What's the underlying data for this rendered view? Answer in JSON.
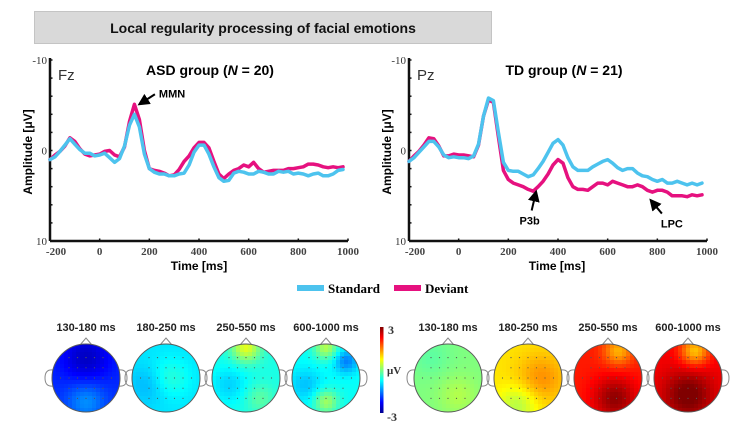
{
  "title": "Local regularity processing of facial emotions",
  "legend": {
    "items": [
      {
        "name": "Standard",
        "color": "#4dc3ee"
      },
      {
        "name": "Deviant",
        "color": "#e6117f"
      }
    ]
  },
  "chart_data": [
    {
      "type": "line",
      "panel": "left",
      "title_prefix": "ASD group (",
      "title_n": "N",
      "title_suffix": " = 20)",
      "electrode": "Fz",
      "xlabel": "Time [ms]",
      "ylabel": "Amplitude [μV]",
      "xlim": [
        -200,
        1000
      ],
      "ylim": [
        -10,
        10
      ],
      "y_inverted": true,
      "xticks": [
        -200,
        0,
        200,
        400,
        600,
        800,
        1000
      ],
      "yticks_labeled": [
        -10,
        0,
        10
      ],
      "annotations": [
        {
          "text": "MMN",
          "x": 150,
          "y": -5.0
        }
      ],
      "series": [
        {
          "name": "Standard",
          "color": "#4dc3ee",
          "x": [
            -200,
            -180,
            -160,
            -140,
            -120,
            -100,
            -80,
            -60,
            -40,
            -20,
            0,
            20,
            40,
            60,
            80,
            100,
            120,
            140,
            160,
            180,
            200,
            220,
            240,
            260,
            280,
            300,
            320,
            340,
            360,
            380,
            400,
            420,
            440,
            460,
            480,
            500,
            520,
            540,
            560,
            580,
            600,
            620,
            640,
            660,
            680,
            700,
            720,
            740,
            760,
            780,
            800,
            820,
            840,
            860,
            880,
            900,
            920,
            940,
            960,
            980
          ],
          "y": [
            1.0,
            0.7,
            0.1,
            -0.6,
            -1.3,
            -0.7,
            -0.1,
            0.3,
            0.3,
            0.6,
            0.5,
            0.3,
            0.8,
            1.3,
            0.9,
            -0.5,
            -2.8,
            -4.0,
            -2.6,
            0.4,
            2.0,
            2.4,
            2.6,
            2.6,
            2.8,
            2.8,
            2.6,
            2.5,
            1.6,
            0.2,
            -0.6,
            -0.6,
            0.4,
            1.8,
            3.0,
            3.4,
            3.3,
            2.5,
            2.3,
            2.4,
            2.6,
            2.6,
            2.3,
            2.4,
            2.6,
            2.6,
            2.3,
            2.4,
            2.3,
            2.6,
            2.5,
            2.6,
            2.8,
            2.6,
            2.5,
            2.8,
            2.8,
            2.6,
            2.2,
            2.1
          ]
        },
        {
          "name": "Deviant",
          "color": "#e6117f",
          "x": [
            -200,
            -180,
            -160,
            -140,
            -120,
            -100,
            -80,
            -60,
            -40,
            -20,
            0,
            20,
            40,
            60,
            80,
            100,
            120,
            140,
            160,
            180,
            200,
            220,
            240,
            260,
            280,
            300,
            320,
            340,
            360,
            380,
            400,
            420,
            440,
            460,
            480,
            500,
            520,
            540,
            560,
            580,
            600,
            620,
            640,
            660,
            680,
            700,
            720,
            740,
            760,
            780,
            800,
            820,
            840,
            860,
            880,
            900,
            920,
            940,
            960,
            980
          ],
          "y": [
            1.0,
            0.5,
            0.1,
            -0.5,
            -1.4,
            -1.0,
            -0.2,
            0.4,
            0.6,
            0.5,
            0.4,
            0.1,
            0.0,
            0.5,
            0.7,
            -0.4,
            -3.2,
            -5.1,
            -3.4,
            0.0,
            2.0,
            2.2,
            2.3,
            2.5,
            2.8,
            2.7,
            2.1,
            1.2,
            0.6,
            -0.3,
            -0.9,
            -0.9,
            -0.3,
            1.2,
            2.6,
            3.1,
            2.6,
            2.2,
            2.0,
            1.6,
            1.8,
            1.3,
            2.0,
            2.4,
            2.3,
            2.2,
            2.2,
            2.2,
            2.0,
            2.0,
            1.9,
            1.8,
            1.5,
            1.5,
            1.6,
            1.8,
            1.9,
            1.8,
            1.9,
            1.8
          ]
        }
      ]
    },
    {
      "type": "line",
      "panel": "right",
      "title_prefix": "TD group (",
      "title_n": "N",
      "title_suffix": " = 21)",
      "electrode": "Pz",
      "xlabel": "Time [ms]",
      "ylabel": "Amplitude [μV]",
      "xlim": [
        -200,
        1000
      ],
      "ylim": [
        -10,
        10
      ],
      "y_inverted": true,
      "xticks": [
        -200,
        0,
        200,
        400,
        600,
        800,
        1000
      ],
      "yticks_labeled": [
        -10,
        0,
        10
      ],
      "annotations": [
        {
          "text": "P3b",
          "x": 310,
          "y": 4.2
        },
        {
          "text": "LPC",
          "x": 770,
          "y": 5.2
        }
      ],
      "series": [
        {
          "name": "Standard",
          "color": "#4dc3ee",
          "x": [
            -200,
            -180,
            -160,
            -140,
            -120,
            -100,
            -80,
            -60,
            -40,
            -20,
            0,
            20,
            40,
            60,
            80,
            100,
            120,
            140,
            160,
            180,
            200,
            220,
            240,
            260,
            280,
            300,
            320,
            340,
            360,
            380,
            400,
            420,
            440,
            460,
            480,
            500,
            520,
            540,
            560,
            580,
            600,
            620,
            640,
            660,
            680,
            700,
            720,
            740,
            760,
            780,
            800,
            820,
            840,
            860,
            880,
            900,
            920,
            940,
            960,
            980
          ],
          "y": [
            1.2,
            0.8,
            0.2,
            -0.4,
            -1.0,
            -1.0,
            -0.4,
            0.5,
            0.8,
            0.7,
            0.8,
            0.8,
            0.9,
            0.6,
            -0.7,
            -3.8,
            -5.8,
            -5.5,
            -2.0,
            1.3,
            2.2,
            2.3,
            2.3,
            2.6,
            2.9,
            2.7,
            2.0,
            1.2,
            0.2,
            -0.8,
            -1.2,
            -0.6,
            0.8,
            1.8,
            2.2,
            2.2,
            2.2,
            1.8,
            1.5,
            1.2,
            1.0,
            1.4,
            1.9,
            2.2,
            2.0,
            2.0,
            2.5,
            2.8,
            2.9,
            3.2,
            3.4,
            3.2,
            3.6,
            3.6,
            3.4,
            3.6,
            3.8,
            3.6,
            3.8,
            3.6
          ]
        },
        {
          "name": "Deviant",
          "color": "#e6117f",
          "x": [
            -200,
            -180,
            -160,
            -140,
            -120,
            -100,
            -80,
            -60,
            -40,
            -20,
            0,
            20,
            40,
            60,
            80,
            100,
            120,
            140,
            160,
            180,
            200,
            220,
            240,
            260,
            280,
            300,
            320,
            340,
            360,
            380,
            400,
            420,
            440,
            460,
            480,
            500,
            520,
            540,
            560,
            580,
            600,
            620,
            640,
            660,
            680,
            700,
            720,
            740,
            760,
            780,
            800,
            820,
            840,
            860,
            880,
            900,
            920,
            940,
            960,
            980
          ],
          "y": [
            1.2,
            0.6,
            0.1,
            -0.6,
            -1.4,
            -1.3,
            -0.5,
            0.6,
            0.6,
            0.4,
            0.5,
            0.5,
            0.6,
            0.7,
            -0.6,
            -3.8,
            -5.6,
            -5.3,
            -1.5,
            2.2,
            3.2,
            3.6,
            3.8,
            4.0,
            4.3,
            4.5,
            4.0,
            3.4,
            2.6,
            1.6,
            1.0,
            1.4,
            3.0,
            4.0,
            4.3,
            4.3,
            4.4,
            4.0,
            3.6,
            3.6,
            3.8,
            3.4,
            3.6,
            3.8,
            4.0,
            4.0,
            3.8,
            4.0,
            4.4,
            4.6,
            4.4,
            4.4,
            4.6,
            5.0,
            5.0,
            5.0,
            5.1,
            4.9,
            5.0,
            4.9
          ]
        }
      ]
    }
  ],
  "topo": {
    "colorbar": {
      "max_label": "3",
      "min_label": "-3",
      "unit": "μV",
      "range": [
        -3,
        3
      ]
    },
    "groups": [
      {
        "group": "ASD",
        "maps": [
          {
            "label": "130-180 ms",
            "mean_uV": -2.0
          },
          {
            "label": "180-250 ms",
            "mean_uV": -0.9
          },
          {
            "label": "250-550 ms",
            "mean_uV": -0.6
          },
          {
            "label": "600-1000 ms",
            "mean_uV": -0.7
          }
        ]
      },
      {
        "group": "TD",
        "maps": [
          {
            "label": "130-180 ms",
            "mean_uV": 0.0
          },
          {
            "label": "180-250 ms",
            "mean_uV": 0.9
          },
          {
            "label": "250-550 ms",
            "mean_uV": 2.1
          },
          {
            "label": "600-1000 ms",
            "mean_uV": 2.3
          }
        ]
      }
    ]
  }
}
